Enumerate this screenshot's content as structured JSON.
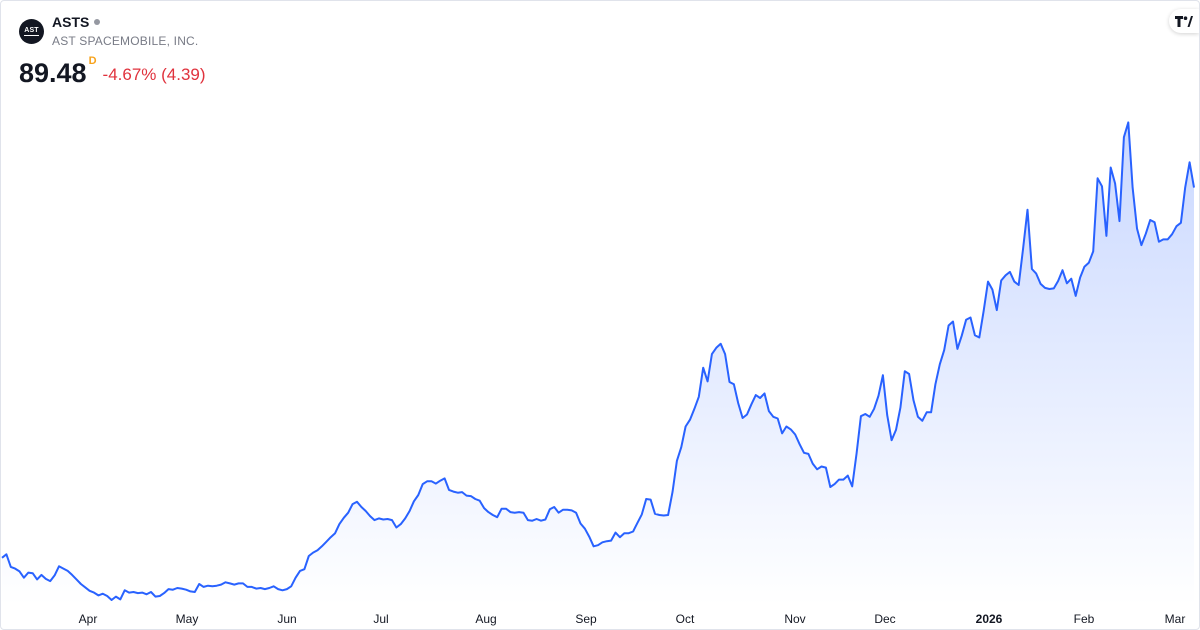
{
  "header": {
    "ticker": "ASTS",
    "company": "AST SPACEMOBILE, INC.",
    "logo_text": "AST",
    "price": "89.48",
    "price_unit": "D",
    "change": "-4.67% (4.39)"
  },
  "colors": {
    "line": "#2962ff",
    "area_top": "#c7d6ff",
    "area_bottom": "#ffffff",
    "negative": "#e0323d",
    "unit_badge": "#f7a21b"
  },
  "icons": {
    "tradingview": "tradingview-logo-icon",
    "status": "market-status-dot"
  },
  "chart_data": {
    "type": "area",
    "x_tick_labels": [
      "Apr",
      "May",
      "Jun",
      "Jul",
      "Aug",
      "Sep",
      "Oct",
      "Nov",
      "Dec",
      "2026",
      "Feb",
      "Mar"
    ],
    "x_tick_bold": [
      false,
      false,
      false,
      false,
      false,
      false,
      false,
      false,
      false,
      true,
      false,
      false
    ],
    "y_scale": {
      "price_min": 20.0,
      "price_max": 104.3
    },
    "grid": false,
    "legend": "none",
    "series": [
      {
        "values": [
          24.6,
          25.2,
          23.0,
          22.7,
          22.2,
          21.1,
          22.0,
          21.9,
          20.8,
          21.6,
          20.9,
          20.5,
          21.5,
          23.1,
          22.7,
          22.3,
          21.6,
          20.8,
          20.0,
          19.4,
          18.8,
          18.5,
          18.0,
          18.3,
          17.9,
          17.2,
          17.8,
          17.3,
          18.9,
          18.5,
          18.6,
          18.4,
          18.5,
          18.2,
          18.6,
          17.8,
          17.9,
          18.4,
          19.1,
          19.0,
          19.3,
          19.2,
          19.0,
          18.7,
          18.6,
          20.0,
          19.5,
          19.7,
          19.6,
          19.7,
          19.9,
          20.3,
          20.1,
          19.9,
          20.1,
          20.1,
          19.5,
          19.5,
          19.2,
          19.3,
          19.1,
          19.3,
          19.6,
          19.1,
          18.9,
          19.1,
          19.6,
          21.1,
          22.3,
          22.6,
          24.9,
          25.5,
          25.9,
          26.6,
          27.4,
          28.2,
          28.9,
          30.5,
          31.6,
          32.5,
          34.0,
          34.4,
          33.5,
          32.8,
          31.9,
          31.2,
          31.5,
          31.3,
          31.4,
          31.2,
          29.9,
          30.5,
          31.5,
          32.8,
          34.5,
          35.6,
          37.5,
          38.0,
          38.0,
          37.6,
          38.1,
          38.5,
          36.5,
          36.2,
          36.0,
          36.1,
          35.5,
          35.4,
          34.9,
          34.6,
          33.3,
          32.6,
          32.1,
          31.7,
          33.2,
          33.2,
          32.6,
          32.5,
          32.6,
          32.5,
          31.2,
          31.1,
          31.4,
          31.1,
          31.3,
          33.1,
          33.5,
          32.5,
          33.0,
          33.0,
          32.9,
          32.5,
          30.6,
          29.7,
          28.3,
          26.6,
          26.8,
          27.3,
          27.5,
          27.6,
          29.0,
          28.2,
          28.9,
          28.9,
          29.2,
          30.7,
          32.2,
          34.9,
          34.8,
          32.3,
          32.1,
          32.0,
          32.1,
          36.1,
          41.6,
          44.0,
          47.6,
          48.8,
          50.7,
          52.8,
          57.9,
          55.5,
          60.3,
          61.4,
          62.1,
          60.3,
          55.4,
          55.0,
          51.7,
          49.1,
          49.7,
          51.5,
          53.1,
          52.6,
          53.4,
          50.3,
          49.3,
          49.0,
          46.4,
          47.6,
          47.1,
          46.2,
          44.5,
          43.0,
          42.8,
          41.1,
          40.1,
          40.6,
          40.4,
          37.0,
          37.5,
          38.3,
          38.3,
          39.0,
          37.1,
          42.9,
          49.4,
          49.8,
          49.3,
          50.7,
          53.0,
          56.6,
          49.6,
          45.2,
          47.0,
          50.9,
          57.3,
          56.8,
          52.2,
          49.3,
          48.6,
          50.1,
          50.1,
          55.0,
          58.5,
          61.0,
          65.3,
          66.0,
          61.2,
          63.5,
          66.3,
          66.7,
          63.6,
          63.2,
          67.8,
          73.0,
          71.6,
          68.0,
          73.2,
          74.1,
          74.7,
          73.0,
          72.4,
          78.8,
          85.6,
          75.2,
          74.4,
          72.6,
          71.9,
          71.7,
          71.8,
          73.1,
          75.0,
          72.7,
          73.5,
          70.5,
          73.7,
          75.6,
          76.3,
          78.3,
          91.1,
          89.7,
          81.0,
          93.0,
          90.2,
          83.6,
          98.3,
          100.9,
          89.5,
          82.3,
          79.4,
          81.4,
          83.8,
          83.4,
          80.0,
          80.4,
          80.4,
          81.3,
          82.7,
          83.3,
          89.5,
          93.9,
          89.48
        ]
      }
    ]
  }
}
